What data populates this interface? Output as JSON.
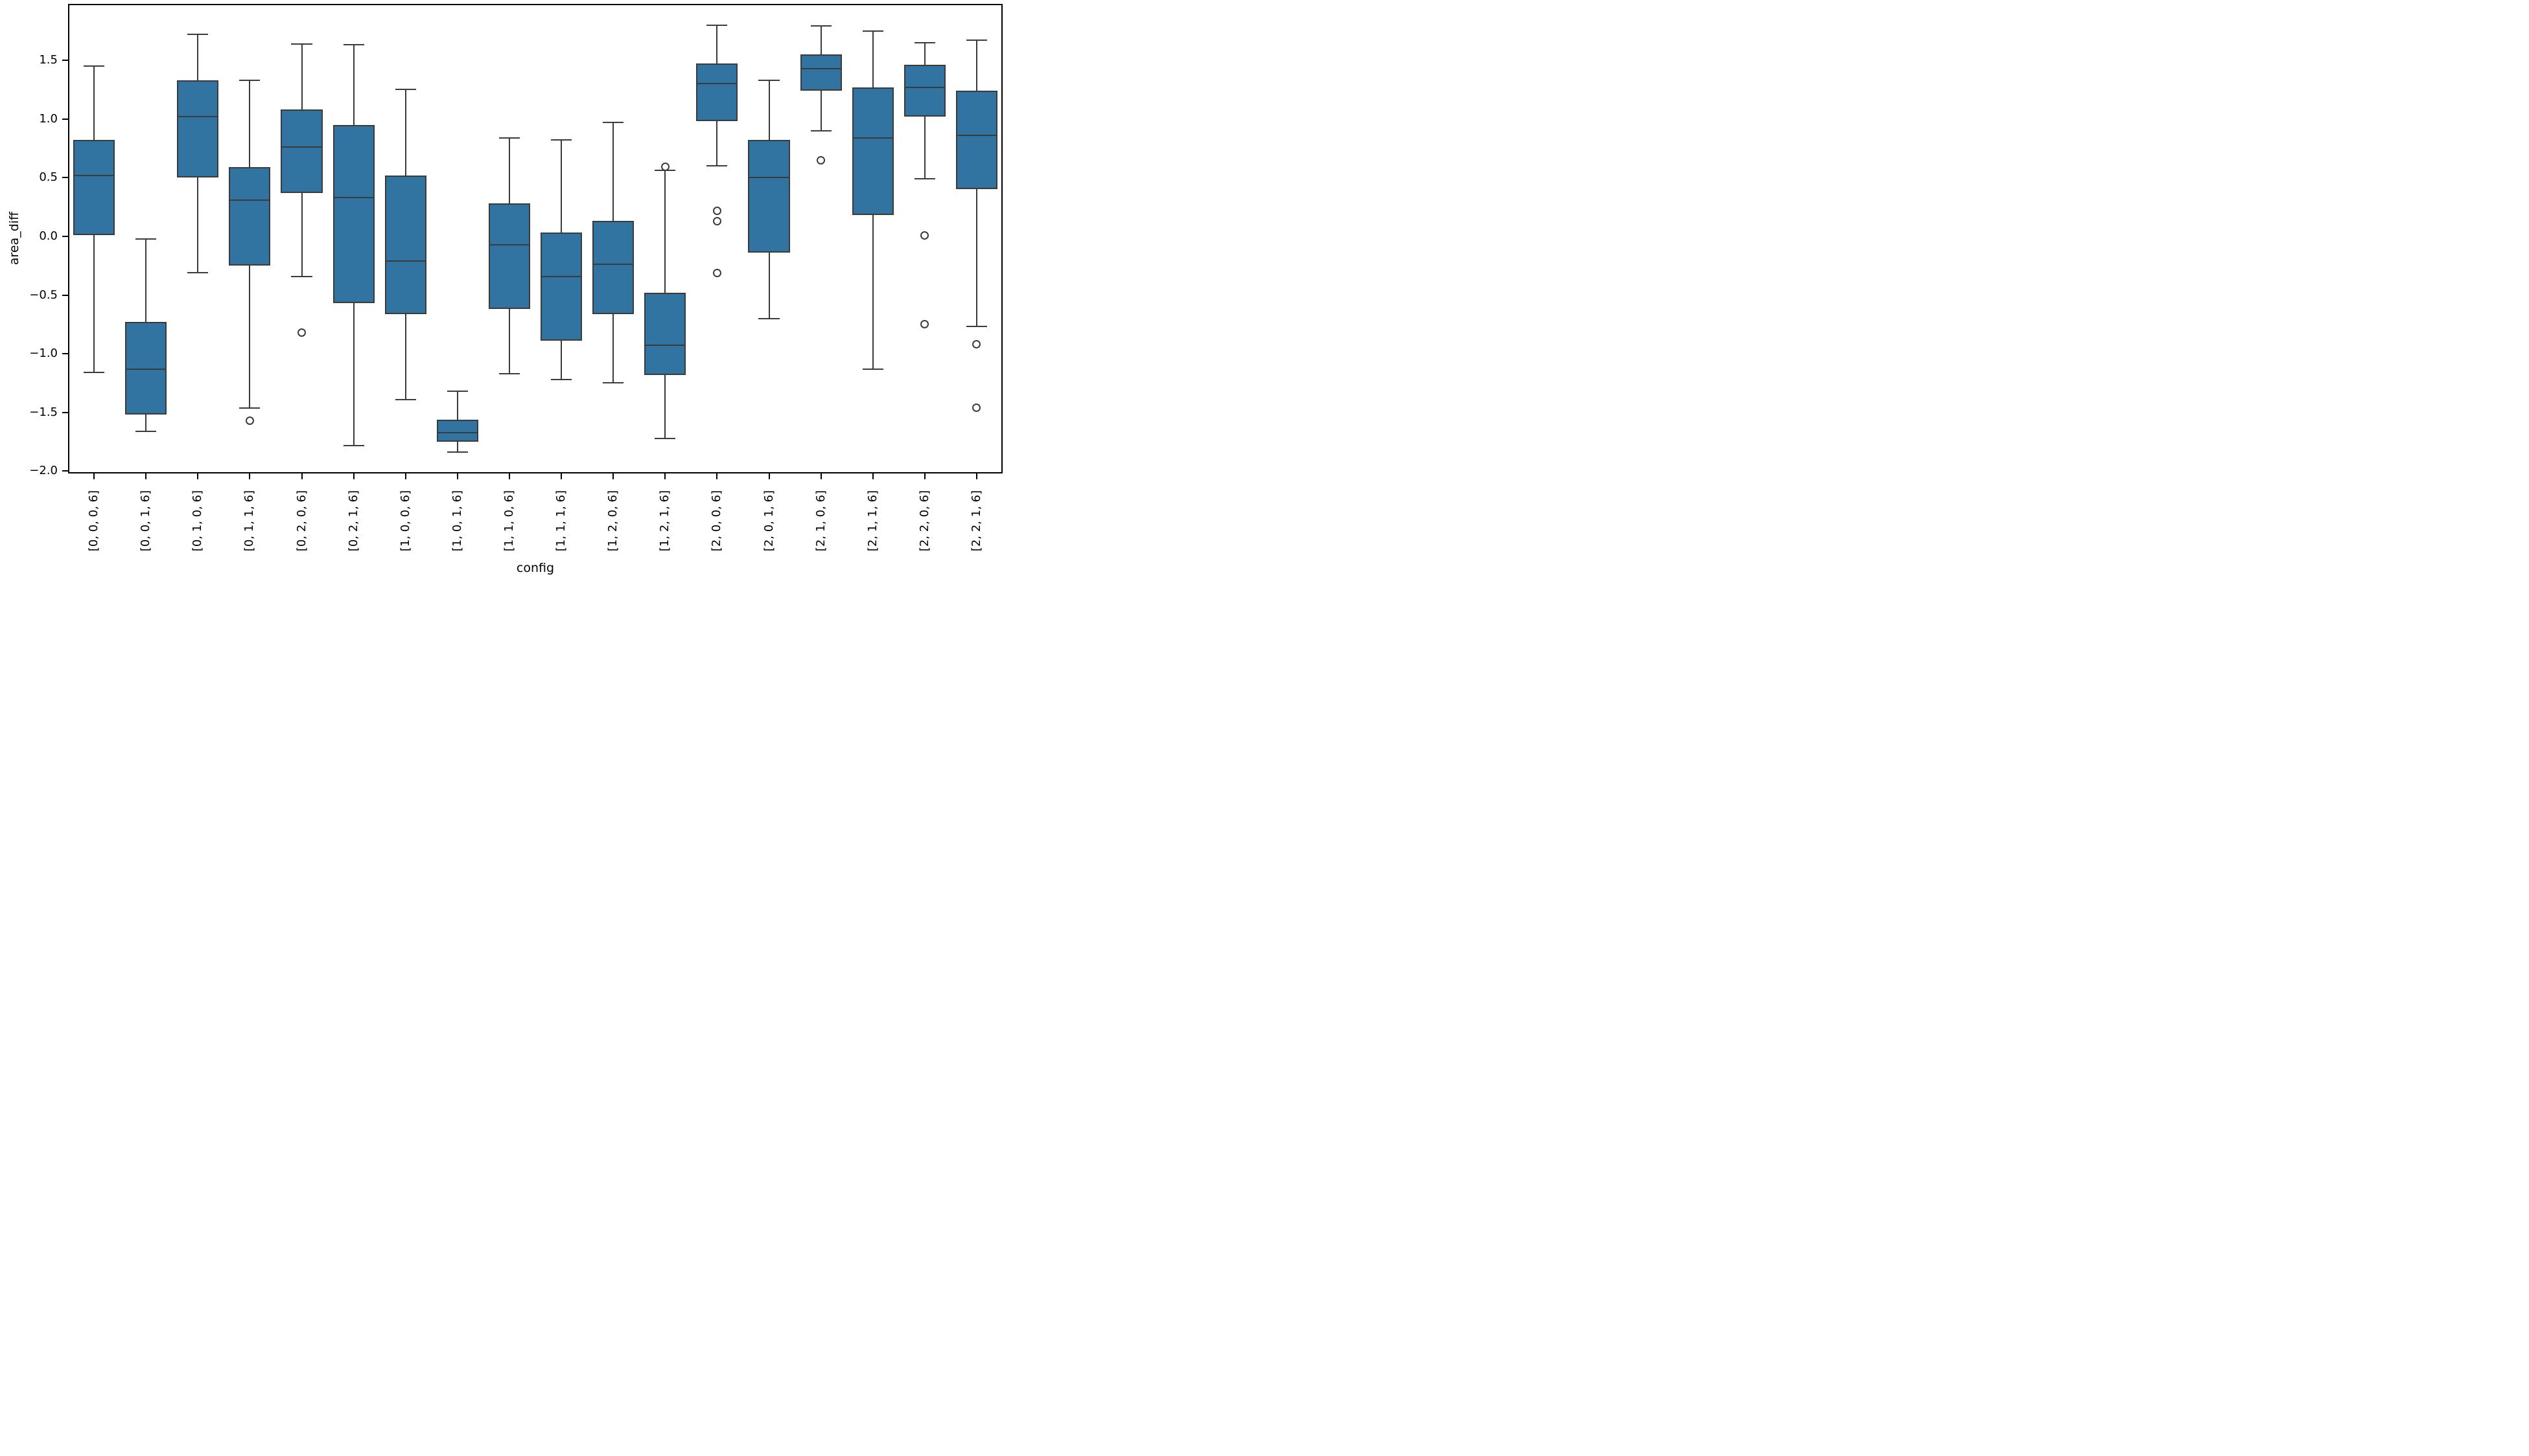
{
  "figure": {
    "background": "#ffffff"
  },
  "chart_data": {
    "type": "box",
    "title": "",
    "xlabel": "config",
    "ylabel": "area_diff",
    "ylim": [
      -2.02,
      1.98
    ],
    "yticks": [
      {
        "value": 1.5,
        "label": "1.5"
      },
      {
        "value": 1.0,
        "label": "1.0"
      },
      {
        "value": 0.5,
        "label": "0.5"
      },
      {
        "value": 0.0,
        "label": "0.0"
      },
      {
        "value": -0.5,
        "label": "−0.5"
      },
      {
        "value": -1.0,
        "label": "−1.0"
      },
      {
        "value": -1.5,
        "label": "−1.5"
      },
      {
        "value": -2.0,
        "label": "−2.0"
      }
    ],
    "grid": false,
    "legend": "none",
    "categories": [
      "[0, 0, 0, 6]",
      "[0, 0, 1, 6]",
      "[0, 1, 0, 6]",
      "[0, 1, 1, 6]",
      "[0, 2, 0, 6]",
      "[0, 2, 1, 6]",
      "[1, 0, 0, 6]",
      "[1, 0, 1, 6]",
      "[1, 1, 0, 6]",
      "[1, 1, 1, 6]",
      "[1, 2, 0, 6]",
      "[1, 2, 1, 6]",
      "[2, 0, 0, 6]",
      "[2, 0, 1, 6]",
      "[2, 1, 0, 6]",
      "[2, 1, 1, 6]",
      "[2, 2, 0, 6]",
      "[2, 2, 1, 6]"
    ],
    "series": [
      {
        "label": "[0, 0, 0, 6]",
        "whislo": -1.16,
        "q1": 0.01,
        "med": 0.52,
        "q3": 0.82,
        "whishi": 1.45,
        "fliers": []
      },
      {
        "label": "[0, 0, 1, 6]",
        "whislo": -1.66,
        "q1": -1.52,
        "med": -1.13,
        "q3": -0.73,
        "whishi": -0.02,
        "fliers": []
      },
      {
        "label": "[0, 1, 0, 6]",
        "whislo": -0.31,
        "q1": 0.5,
        "med": 1.02,
        "q3": 1.33,
        "whishi": 1.72,
        "fliers": []
      },
      {
        "label": "[0, 1, 1, 6]",
        "whislo": -1.46,
        "q1": -0.25,
        "med": 0.31,
        "q3": 0.59,
        "whishi": 1.33,
        "fliers": [
          -1.57
        ]
      },
      {
        "label": "[0, 2, 0, 6]",
        "whislo": -0.34,
        "q1": 0.37,
        "med": 0.76,
        "q3": 1.08,
        "whishi": 1.64,
        "fliers": [
          -0.82
        ]
      },
      {
        "label": "[0, 2, 1, 6]",
        "whislo": -1.78,
        "q1": -0.57,
        "med": 0.33,
        "q3": 0.95,
        "whishi": 1.63,
        "fliers": []
      },
      {
        "label": "[1, 0, 0, 6]",
        "whislo": -1.39,
        "q1": -0.66,
        "med": -0.21,
        "q3": 0.52,
        "whishi": 1.25,
        "fliers": []
      },
      {
        "label": "[1, 0, 1, 6]",
        "whislo": -1.84,
        "q1": -1.75,
        "med": -1.67,
        "q3": -1.56,
        "whishi": -1.32,
        "fliers": []
      },
      {
        "label": "[1, 1, 0, 6]",
        "whislo": -1.17,
        "q1": -0.62,
        "med": -0.07,
        "q3": 0.28,
        "whishi": 0.84,
        "fliers": []
      },
      {
        "label": "[1, 1, 1, 6]",
        "whislo": -1.22,
        "q1": -0.89,
        "med": -0.34,
        "q3": 0.03,
        "whishi": 0.82,
        "fliers": []
      },
      {
        "label": "[1, 2, 0, 6]",
        "whislo": -1.25,
        "q1": -0.66,
        "med": -0.24,
        "q3": 0.13,
        "whishi": 0.97,
        "fliers": []
      },
      {
        "label": "[1, 2, 1, 6]",
        "whislo": -1.72,
        "q1": -1.18,
        "med": -0.93,
        "q3": -0.48,
        "whishi": 0.56,
        "fliers": [
          0.59
        ]
      },
      {
        "label": "[2, 0, 0, 6]",
        "whislo": 0.6,
        "q1": 0.98,
        "med": 1.3,
        "q3": 1.47,
        "whishi": 1.8,
        "fliers": [
          0.22,
          0.13,
          -0.31
        ]
      },
      {
        "label": "[2, 0, 1, 6]",
        "whislo": -0.7,
        "q1": -0.14,
        "med": 0.5,
        "q3": 0.82,
        "whishi": 1.33,
        "fliers": []
      },
      {
        "label": "[2, 1, 0, 6]",
        "whislo": 0.9,
        "q1": 1.24,
        "med": 1.43,
        "q3": 1.55,
        "whishi": 1.79,
        "fliers": [
          0.65
        ]
      },
      {
        "label": "[2, 1, 1, 6]",
        "whislo": -1.13,
        "q1": 0.18,
        "med": 0.84,
        "q3": 1.27,
        "whishi": 1.75,
        "fliers": []
      },
      {
        "label": "[2, 2, 0, 6]",
        "whislo": 0.49,
        "q1": 1.02,
        "med": 1.27,
        "q3": 1.46,
        "whishi": 1.65,
        "fliers": [
          0.01,
          -0.75
        ]
      },
      {
        "label": "[2, 2, 1, 6]",
        "whislo": -0.77,
        "q1": 0.4,
        "med": 0.86,
        "q3": 1.24,
        "whishi": 1.67,
        "fliers": [
          -0.92,
          -1.46
        ]
      }
    ],
    "styles": {
      "box_fill": "#3274a1",
      "line_color": "#3b3b3b",
      "axis_color": "#000000",
      "box_width_frac": 0.8,
      "cap_width_frac": 0.4
    }
  }
}
